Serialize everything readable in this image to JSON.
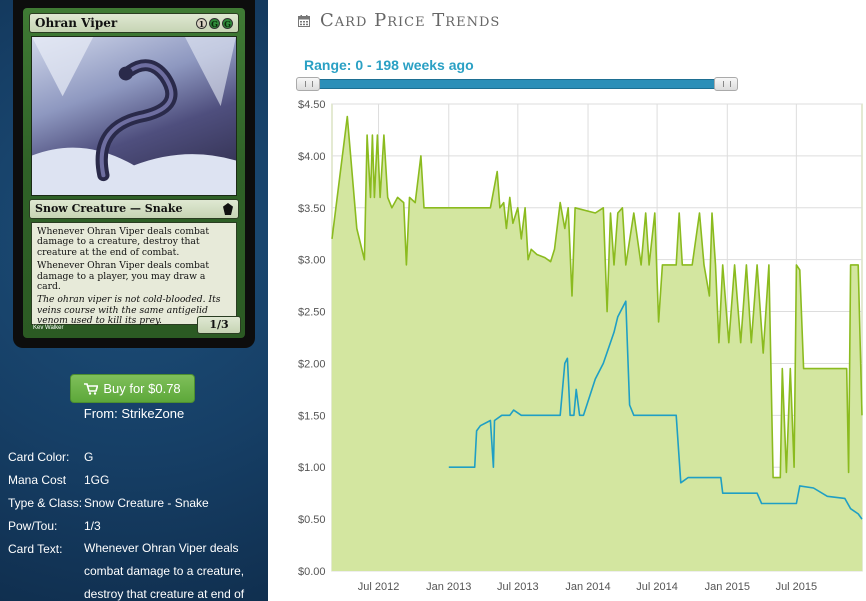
{
  "card": {
    "name": "Ohran Viper",
    "mana_cost_symbols": [
      "1",
      "G",
      "G"
    ],
    "type_line": "Snow Creature — Snake",
    "rules_text": [
      "Whenever Ohran Viper deals combat damage to a creature, destroy that creature at the end of combat.",
      "Whenever Ohran Viper deals combat damage to a player, you may draw a card."
    ],
    "flavor_text": "The ohran viper is not cold-blooded. Its veins course with the same antigelid venom used to kill its prey.",
    "artist": "Kev Walker",
    "power_toughness": "1/3"
  },
  "buy": {
    "label": "Buy for $0.78",
    "from_label": "From: StrikeZone"
  },
  "details": [
    {
      "label": "Card Color:",
      "value": "G"
    },
    {
      "label": "Mana Cost",
      "value": "1GG"
    },
    {
      "label": "Type & Class:",
      "value": "Snow Creature - Snake"
    },
    {
      "label": "Pow/Tou:",
      "value": "1/3"
    },
    {
      "label": "Card Text:",
      "value": "Whenever Ohran Viper deals combat damage to a creature, destroy that creature at end of"
    }
  ],
  "header": {
    "title": "Card Price Trends",
    "range_label": "Range: 0 - 198 weeks ago"
  },
  "chart_data": {
    "type": "area",
    "title": "",
    "xlabel": "",
    "ylabel": "",
    "x_domain": [
      "2012-03-01",
      "2015-12-20"
    ],
    "ylim": [
      0,
      4.5
    ],
    "y_ticks": [
      "$0.00",
      "$0.50",
      "$1.00",
      "$1.50",
      "$2.00",
      "$2.50",
      "$3.00",
      "$3.50",
      "$4.00",
      "$4.50"
    ],
    "x_ticks": [
      {
        "date": "2012-07-01",
        "label": "Jul 2012"
      },
      {
        "date": "2013-01-01",
        "label": "Jan 2013"
      },
      {
        "date": "2013-07-01",
        "label": "Jul 2013"
      },
      {
        "date": "2014-01-01",
        "label": "Jan 2014"
      },
      {
        "date": "2014-07-01",
        "label": "Jul 2014"
      },
      {
        "date": "2015-01-01",
        "label": "Jan 2015"
      },
      {
        "date": "2015-07-01",
        "label": "Jul 2015"
      }
    ],
    "grid": true,
    "series": [
      {
        "color": "#8bbb1f",
        "fill": "#d3e6a0",
        "points": [
          [
            "2012-03-01",
            3.2
          ],
          [
            "2012-04-10",
            4.38
          ],
          [
            "2012-05-05",
            3.3
          ],
          [
            "2012-05-25",
            3.0
          ],
          [
            "2012-06-01",
            4.2
          ],
          [
            "2012-06-10",
            3.6
          ],
          [
            "2012-06-15",
            4.2
          ],
          [
            "2012-06-20",
            3.6
          ],
          [
            "2012-06-28",
            4.2
          ],
          [
            "2012-07-05",
            3.6
          ],
          [
            "2012-07-15",
            4.2
          ],
          [
            "2012-07-25",
            3.6
          ],
          [
            "2012-08-05",
            3.5
          ],
          [
            "2012-08-20",
            3.6
          ],
          [
            "2012-09-05",
            3.55
          ],
          [
            "2012-09-12",
            2.95
          ],
          [
            "2012-09-20",
            3.6
          ],
          [
            "2012-10-05",
            3.55
          ],
          [
            "2012-10-20",
            4.0
          ],
          [
            "2012-10-28",
            3.5
          ],
          [
            "2013-01-01",
            3.5
          ],
          [
            "2013-04-20",
            3.5
          ],
          [
            "2013-05-08",
            3.85
          ],
          [
            "2013-05-15",
            3.5
          ],
          [
            "2013-05-25",
            3.55
          ],
          [
            "2013-06-01",
            3.3
          ],
          [
            "2013-06-10",
            3.6
          ],
          [
            "2013-06-18",
            3.35
          ],
          [
            "2013-07-01",
            3.5
          ],
          [
            "2013-07-10",
            3.2
          ],
          [
            "2013-07-20",
            3.5
          ],
          [
            "2013-07-28",
            3.0
          ],
          [
            "2013-08-05",
            3.1
          ],
          [
            "2013-08-20",
            3.05
          ],
          [
            "2013-09-10",
            3.02
          ],
          [
            "2013-09-25",
            2.98
          ],
          [
            "2013-10-05",
            3.1
          ],
          [
            "2013-10-20",
            3.55
          ],
          [
            "2013-11-01",
            3.3
          ],
          [
            "2013-11-10",
            3.5
          ],
          [
            "2013-11-20",
            2.65
          ],
          [
            "2013-11-28",
            3.5
          ],
          [
            "2014-01-20",
            3.45
          ],
          [
            "2014-02-10",
            3.5
          ],
          [
            "2014-02-20",
            2.5
          ],
          [
            "2014-03-01",
            3.45
          ],
          [
            "2014-03-10",
            2.95
          ],
          [
            "2014-03-20",
            3.45
          ],
          [
            "2014-04-01",
            3.5
          ],
          [
            "2014-04-10",
            2.95
          ],
          [
            "2014-05-01",
            3.45
          ],
          [
            "2014-05-20",
            2.95
          ],
          [
            "2014-06-01",
            3.45
          ],
          [
            "2014-06-10",
            2.95
          ],
          [
            "2014-06-25",
            3.45
          ],
          [
            "2014-07-05",
            2.4
          ],
          [
            "2014-07-15",
            2.95
          ],
          [
            "2014-08-20",
            2.95
          ],
          [
            "2014-08-28",
            3.45
          ],
          [
            "2014-09-05",
            2.95
          ],
          [
            "2014-10-01",
            2.95
          ],
          [
            "2014-10-20",
            3.45
          ],
          [
            "2014-11-01",
            2.95
          ],
          [
            "2014-11-15",
            2.65
          ],
          [
            "2014-11-22",
            3.45
          ],
          [
            "2014-12-01",
            2.95
          ],
          [
            "2014-12-10",
            2.2
          ],
          [
            "2014-12-20",
            2.95
          ],
          [
            "2015-01-05",
            2.2
          ],
          [
            "2015-01-20",
            2.95
          ],
          [
            "2015-02-05",
            2.2
          ],
          [
            "2015-02-20",
            2.95
          ],
          [
            "2015-03-05",
            2.2
          ],
          [
            "2015-03-20",
            2.95
          ],
          [
            "2015-04-05",
            2.1
          ],
          [
            "2015-04-20",
            2.95
          ],
          [
            "2015-05-01",
            0.9
          ],
          [
            "2015-05-20",
            0.9
          ],
          [
            "2015-05-25",
            1.95
          ],
          [
            "2015-06-05",
            0.95
          ],
          [
            "2015-06-15",
            1.95
          ],
          [
            "2015-06-25",
            1.0
          ],
          [
            "2015-07-01",
            2.95
          ],
          [
            "2015-07-10",
            2.9
          ],
          [
            "2015-07-20",
            1.95
          ],
          [
            "2015-11-10",
            1.95
          ],
          [
            "2015-11-15",
            0.95
          ],
          [
            "2015-11-20",
            2.95
          ],
          [
            "2015-12-10",
            2.95
          ],
          [
            "2015-12-20",
            1.5
          ]
        ]
      },
      {
        "color": "#1f9fc4",
        "points": [
          [
            "2013-01-01",
            1.0
          ],
          [
            "2013-03-10",
            1.0
          ],
          [
            "2013-03-15",
            1.35
          ],
          [
            "2013-03-25",
            1.4
          ],
          [
            "2013-04-20",
            1.45
          ],
          [
            "2013-04-28",
            1.0
          ],
          [
            "2013-05-01",
            1.45
          ],
          [
            "2013-05-20",
            1.5
          ],
          [
            "2013-06-10",
            1.5
          ],
          [
            "2013-06-20",
            1.55
          ],
          [
            "2013-07-10",
            1.5
          ],
          [
            "2013-10-20",
            1.5
          ],
          [
            "2013-11-01",
            2.0
          ],
          [
            "2013-11-08",
            2.05
          ],
          [
            "2013-11-15",
            1.5
          ],
          [
            "2013-11-25",
            1.5
          ],
          [
            "2013-12-01",
            1.75
          ],
          [
            "2013-12-10",
            1.5
          ],
          [
            "2013-12-20",
            1.5
          ],
          [
            "2014-01-20",
            1.85
          ],
          [
            "2014-02-10",
            2.0
          ],
          [
            "2014-03-10",
            2.3
          ],
          [
            "2014-03-20",
            2.45
          ],
          [
            "2014-04-10",
            2.6
          ],
          [
            "2014-04-20",
            1.6
          ],
          [
            "2014-05-01",
            1.5
          ],
          [
            "2014-08-20",
            1.5
          ],
          [
            "2014-09-01",
            0.85
          ],
          [
            "2014-09-20",
            0.9
          ],
          [
            "2014-12-15",
            0.9
          ],
          [
            "2014-12-20",
            0.75
          ],
          [
            "2015-03-20",
            0.75
          ],
          [
            "2015-04-01",
            0.65
          ],
          [
            "2015-07-01",
            0.65
          ],
          [
            "2015-07-10",
            0.82
          ],
          [
            "2015-08-15",
            0.8
          ],
          [
            "2015-09-20",
            0.72
          ],
          [
            "2015-11-05",
            0.7
          ],
          [
            "2015-11-20",
            0.6
          ],
          [
            "2015-12-10",
            0.55
          ],
          [
            "2015-12-20",
            0.5
          ]
        ]
      }
    ]
  }
}
